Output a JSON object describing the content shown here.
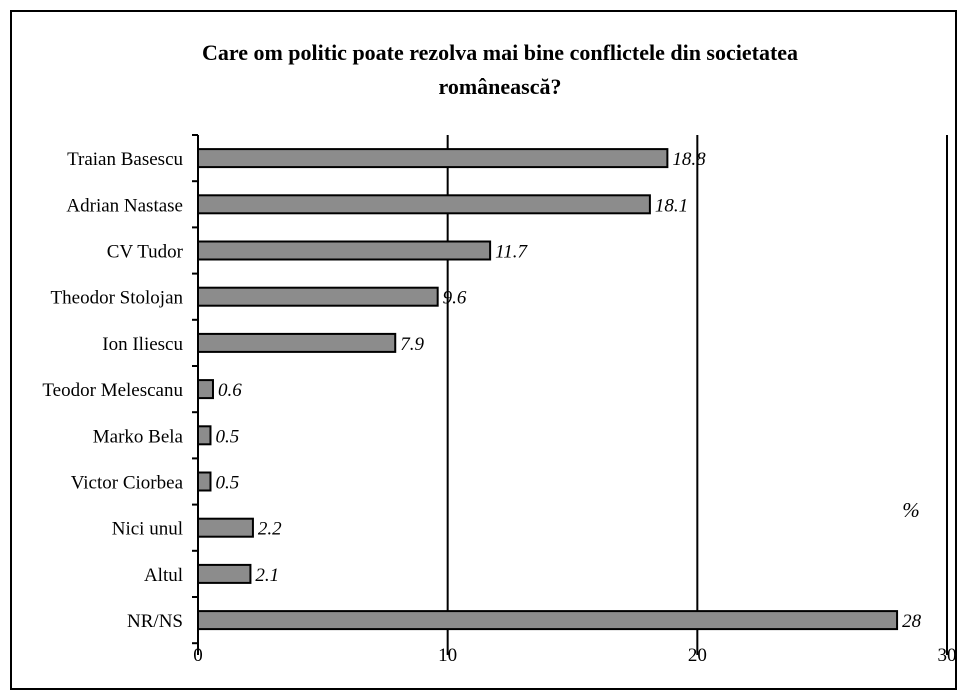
{
  "chart_data": {
    "type": "bar",
    "orientation": "horizontal",
    "title_lines": [
      "Care om politic poate rezolva mai bine conflictele din societatea",
      "românească?"
    ],
    "categories": [
      "Traian Basescu",
      "Adrian Nastase",
      "CV Tudor",
      "Theodor Stolojan",
      "Ion Iliescu",
      "Teodor Melescanu",
      "Marko Bela",
      "Victor Ciorbea",
      "Nici unul",
      "Altul",
      "NR/NS"
    ],
    "values": [
      18.8,
      18.1,
      11.7,
      9.6,
      7.9,
      0.6,
      0.5,
      0.5,
      2.2,
      2.1,
      28
    ],
    "value_labels": [
      "18.8",
      "18.1",
      "11.7",
      "9.6",
      "7.9",
      "0.6",
      "0.5",
      "0.5",
      "2.2",
      "2.1",
      "28"
    ],
    "xlim": [
      0,
      30
    ],
    "x_ticks": [
      0,
      10,
      20,
      30
    ],
    "x_tick_labels": [
      "0",
      "10",
      "20",
      "30"
    ],
    "unit_label": "%",
    "grid": "vertical",
    "colors": {
      "bar_fill": "#8c8c8c",
      "bar_stroke": "#000000"
    }
  }
}
